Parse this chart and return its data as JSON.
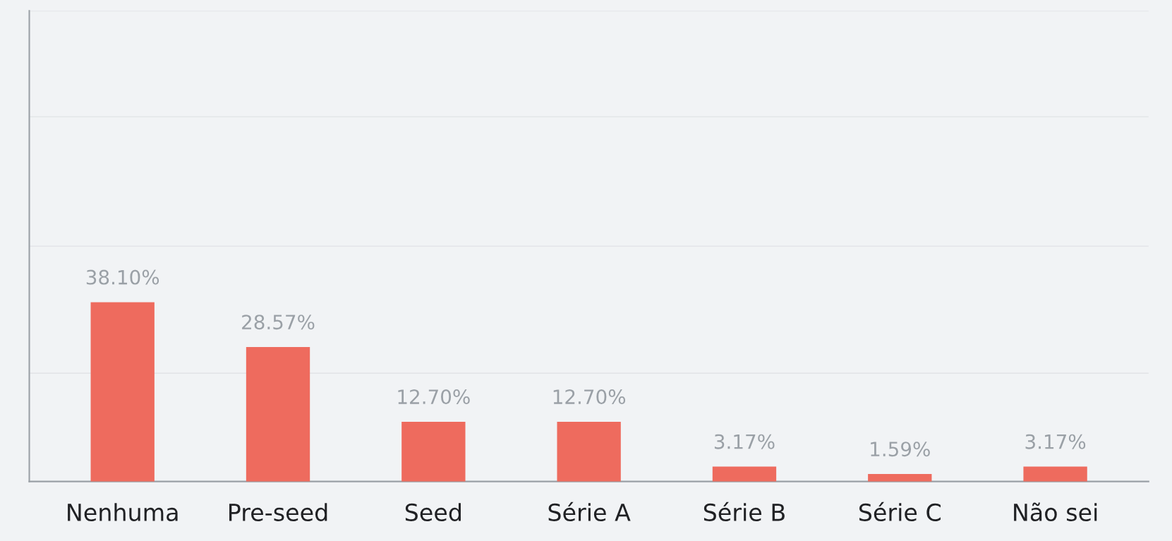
{
  "chart_data": {
    "type": "bar",
    "categories": [
      "Nenhuma",
      "Pre-seed",
      "Seed",
      "Série A",
      "Série B",
      "Série C",
      "Não sei"
    ],
    "values": [
      38.1,
      28.57,
      12.7,
      12.7,
      3.17,
      1.59,
      3.17
    ],
    "value_labels": [
      "38.10%",
      "28.57%",
      "12.70%",
      "12.70%",
      "3.17%",
      "1.59%",
      "3.17%"
    ],
    "color": "#ee6b5e",
    "ylim": [
      0,
      100
    ],
    "yticks": [
      {
        "value": 23,
        "label": null
      },
      {
        "value": 50,
        "label": null
      },
      {
        "value": 77.5,
        "label": null
      },
      {
        "value": 100,
        "label": null
      }
    ],
    "grid": "y",
    "tick_labels": "x"
  }
}
